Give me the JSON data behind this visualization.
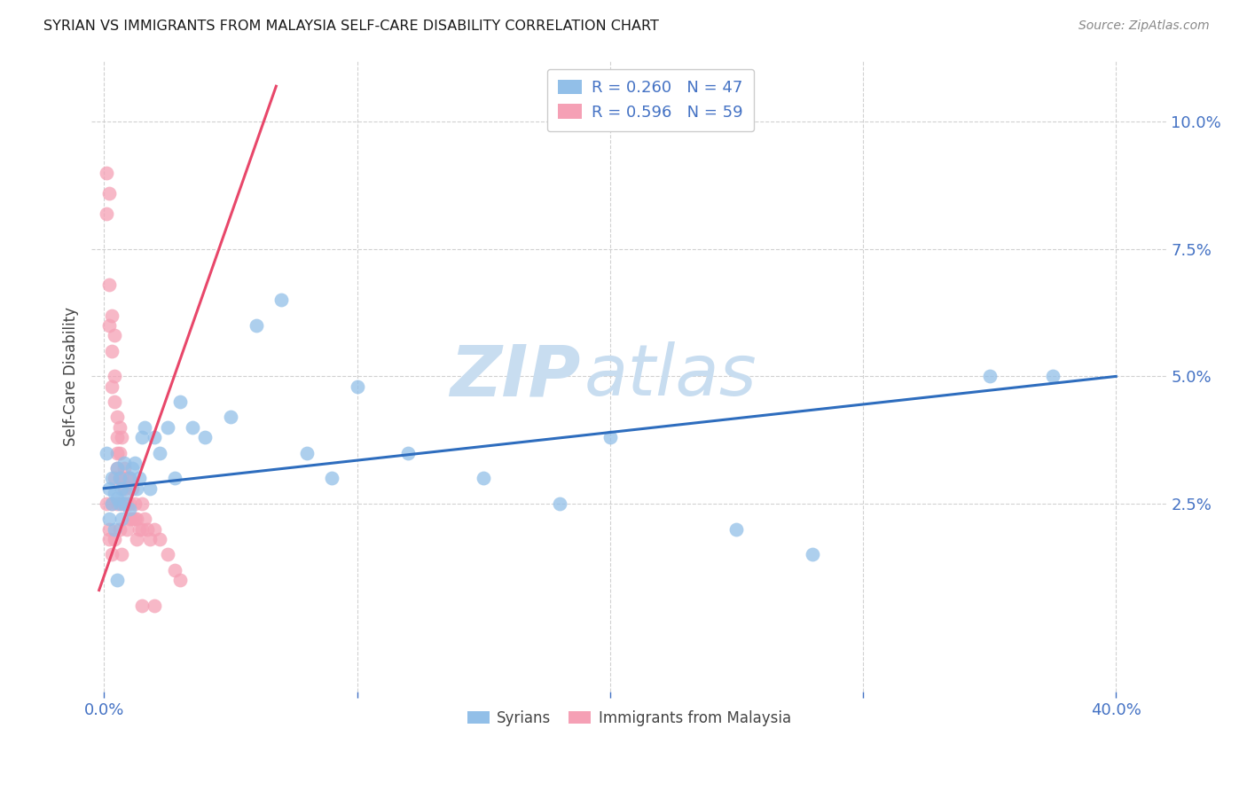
{
  "title": "SYRIAN VS IMMIGRANTS FROM MALAYSIA SELF-CARE DISABILITY CORRELATION CHART",
  "source": "Source: ZipAtlas.com",
  "ylabel": "Self-Care Disability",
  "ytick_labels": [
    "10.0%",
    "7.5%",
    "5.0%",
    "2.5%"
  ],
  "ytick_values": [
    0.1,
    0.075,
    0.05,
    0.025
  ],
  "xlim": [
    -0.005,
    0.42
  ],
  "ylim": [
    -0.012,
    0.112
  ],
  "background_color": "#ffffff",
  "grid_color": "#cccccc",
  "watermark_ZIP": "ZIP",
  "watermark_atlas": "atlas",
  "watermark_color": "#c8ddf0",
  "legend_R1": "R = 0.260",
  "legend_N1": "N = 47",
  "legend_R2": "R = 0.596",
  "legend_N2": "N = 59",
  "syrians_color": "#92bfe8",
  "malaysia_color": "#f5a0b5",
  "line_blue": "#2e6dbe",
  "line_pink": "#e8476a",
  "syrians_label": "Syrians",
  "malaysia_label": "Immigrants from Malaysia",
  "title_color": "#1a1a1a",
  "tick_color": "#4472c4",
  "source_color": "#888888",
  "blue_line_x": [
    0.0,
    0.4
  ],
  "blue_line_y": [
    0.028,
    0.05
  ],
  "pink_line_x": [
    -0.002,
    0.068
  ],
  "pink_line_y": [
    0.008,
    0.107
  ],
  "syrians_x": [
    0.001,
    0.002,
    0.002,
    0.003,
    0.003,
    0.004,
    0.004,
    0.005,
    0.005,
    0.006,
    0.006,
    0.007,
    0.007,
    0.008,
    0.008,
    0.009,
    0.01,
    0.01,
    0.011,
    0.012,
    0.013,
    0.014,
    0.015,
    0.016,
    0.018,
    0.02,
    0.022,
    0.025,
    0.028,
    0.03,
    0.035,
    0.04,
    0.05,
    0.06,
    0.07,
    0.08,
    0.09,
    0.1,
    0.12,
    0.15,
    0.18,
    0.2,
    0.25,
    0.28,
    0.35,
    0.375,
    0.005
  ],
  "syrians_y": [
    0.035,
    0.028,
    0.022,
    0.03,
    0.025,
    0.027,
    0.02,
    0.026,
    0.032,
    0.025,
    0.03,
    0.022,
    0.028,
    0.025,
    0.033,
    0.027,
    0.03,
    0.024,
    0.032,
    0.033,
    0.028,
    0.03,
    0.038,
    0.04,
    0.028,
    0.038,
    0.035,
    0.04,
    0.03,
    0.045,
    0.04,
    0.038,
    0.042,
    0.06,
    0.065,
    0.035,
    0.03,
    0.048,
    0.035,
    0.03,
    0.025,
    0.038,
    0.02,
    0.015,
    0.05,
    0.05,
    0.01
  ],
  "malaysia_x": [
    0.001,
    0.001,
    0.002,
    0.002,
    0.002,
    0.003,
    0.003,
    0.003,
    0.004,
    0.004,
    0.004,
    0.005,
    0.005,
    0.005,
    0.006,
    0.006,
    0.006,
    0.007,
    0.007,
    0.007,
    0.008,
    0.008,
    0.009,
    0.009,
    0.01,
    0.01,
    0.01,
    0.011,
    0.011,
    0.012,
    0.012,
    0.013,
    0.013,
    0.014,
    0.015,
    0.015,
    0.016,
    0.017,
    0.018,
    0.02,
    0.022,
    0.025,
    0.028,
    0.03,
    0.003,
    0.004,
    0.005,
    0.002,
    0.001,
    0.002,
    0.003,
    0.004,
    0.005,
    0.006,
    0.007,
    0.008,
    0.009,
    0.015,
    0.02
  ],
  "malaysia_y": [
    0.09,
    0.082,
    0.086,
    0.068,
    0.06,
    0.062,
    0.055,
    0.048,
    0.058,
    0.05,
    0.045,
    0.042,
    0.038,
    0.032,
    0.04,
    0.035,
    0.03,
    0.038,
    0.03,
    0.025,
    0.032,
    0.028,
    0.03,
    0.025,
    0.03,
    0.025,
    0.022,
    0.028,
    0.022,
    0.025,
    0.022,
    0.022,
    0.018,
    0.02,
    0.025,
    0.02,
    0.022,
    0.02,
    0.018,
    0.02,
    0.018,
    0.015,
    0.012,
    0.01,
    0.025,
    0.03,
    0.035,
    0.02,
    0.025,
    0.018,
    0.015,
    0.018,
    0.025,
    0.02,
    0.015,
    0.025,
    0.02,
    0.005,
    0.005
  ]
}
